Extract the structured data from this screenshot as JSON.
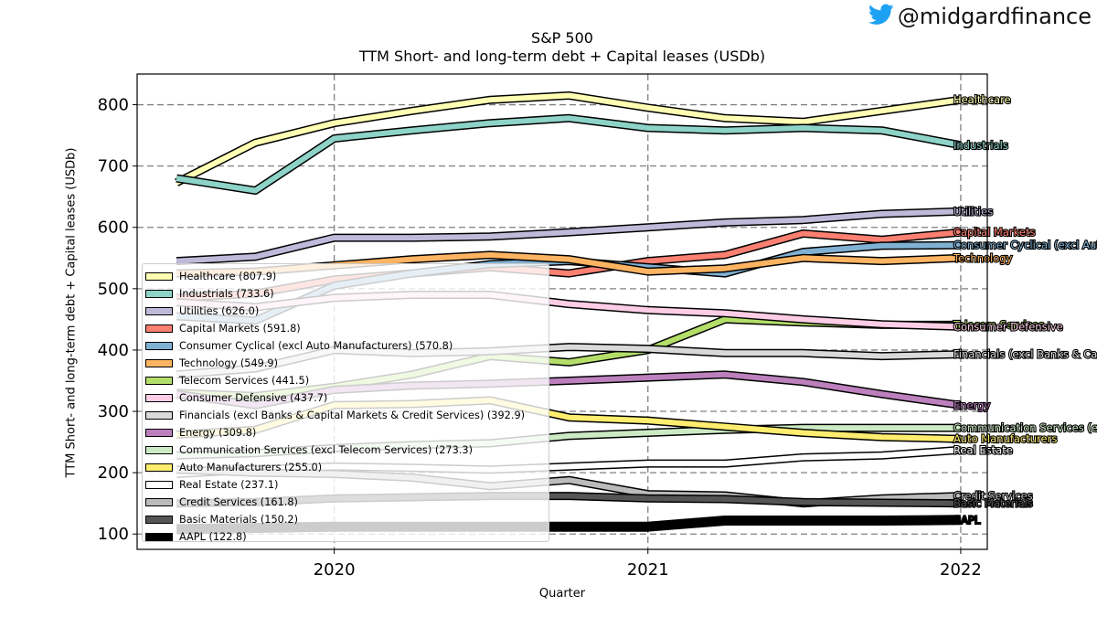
{
  "brand": {
    "handle": "@midgardfinance",
    "icon": "twitter-bird-icon",
    "icon_color": "#1DA1F2"
  },
  "chart_data": {
    "type": "line",
    "title": "S&P 500",
    "subtitle": "TTM Short- and long-term debt + Capital leases (USDb)",
    "xlabel": "Quarter",
    "ylabel": "TTM Short- and long-term debt + Capital leases (USDb)",
    "x": [
      "2019-06-30",
      "2019-09-30",
      "2019-12-31",
      "2020-03-31",
      "2020-06-30",
      "2020-09-30",
      "2020-12-31",
      "2021-03-31",
      "2021-06-30",
      "2021-09-30",
      "2021-12-31"
    ],
    "xlim": [
      "2019-05-15",
      "2022-01-31"
    ],
    "xticks": [
      {
        "label": "2020",
        "date": "2019-12-31"
      },
      {
        "label": "2021",
        "date": "2020-12-31"
      },
      {
        "label": "2022",
        "date": "2021-12-31"
      }
    ],
    "ylim": [
      75,
      850
    ],
    "yticks": [
      100,
      200,
      300,
      400,
      500,
      600,
      700,
      800
    ],
    "grid": true,
    "legend_position": "lower-left",
    "series": [
      {
        "name": "Healthcare",
        "legend": "Healthcare (807.9)",
        "label": "Healthcare",
        "color": "#ffffb3",
        "values": [
          673,
          738,
          770,
          790,
          808,
          815,
          795,
          778,
          772,
          790,
          808
        ]
      },
      {
        "name": "Industrials",
        "legend": "Industrials (733.6)",
        "label": "Industrials",
        "color": "#8dd3c7",
        "values": [
          680,
          660,
          745,
          758,
          770,
          778,
          762,
          758,
          762,
          758,
          734
        ]
      },
      {
        "name": "Utilities",
        "legend": "Utilities (626.0)",
        "label": "Utilities",
        "color": "#bebada",
        "values": [
          545,
          552,
          583,
          583,
          585,
          592,
          600,
          608,
          612,
          622,
          626
        ]
      },
      {
        "name": "Capital Markets",
        "legend": "Capital Markets (591.8)",
        "label": "Capital Markets",
        "color": "#fb8072",
        "values": [
          485,
          492,
          515,
          525,
          535,
          525,
          545,
          555,
          590,
          580,
          592
        ]
      },
      {
        "name": "Consumer Cyclical (excl Auto Manufacturers)",
        "legend": "Consumer Cyclical (excl Auto Manufacturers) (570.8)",
        "label": "Consumer Cyclical (excl Auto Manufacturers)",
        "color": "#80b1d3",
        "values": [
          455,
          448,
          505,
          525,
          540,
          545,
          535,
          525,
          560,
          570,
          571
        ]
      },
      {
        "name": "Technology",
        "legend": "Technology (549.9)",
        "label": "Technology",
        "color": "#fdb462",
        "values": [
          525,
          528,
          538,
          548,
          555,
          548,
          528,
          533,
          550,
          545,
          550
        ]
      },
      {
        "name": "Telecom Services",
        "legend": "Telecom Services (441.5)",
        "label": "Telecom Services",
        "color": "#b3de69",
        "values": [
          330,
          325,
          340,
          360,
          390,
          380,
          400,
          450,
          445,
          441,
          441
        ]
      },
      {
        "name": "Consumer Defensive",
        "legend": "Consumer Defensive (437.7)",
        "label": "Consumer Defensive",
        "color": "#fccde5",
        "values": [
          478,
          470,
          485,
          490,
          490,
          475,
          465,
          460,
          450,
          442,
          438
        ]
      },
      {
        "name": "Financials (excl Banks & Capital Markets & Credit Services)",
        "legend": "Financials (excl Banks & Capital Markets & Credit Services) (392.9)",
        "label": "Financials (excl Banks & Capital Markets & Credit Services)",
        "color": "#d9d9d9",
        "values": [
          360,
          370,
          400,
          395,
          398,
          405,
          402,
          395,
          395,
          390,
          393
        ]
      },
      {
        "name": "Energy",
        "legend": "Energy (309.8)",
        "label": "Energy",
        "color": "#bc80bd",
        "values": [
          328,
          310,
          335,
          342,
          345,
          350,
          355,
          360,
          348,
          328,
          310
        ]
      },
      {
        "name": "Communication Services (excl Telecom Services)",
        "legend": "Communication Services (excl Telecom Services) (273.3)",
        "label": "Communication Services (excl Telecom Services)",
        "color": "#ccebc5",
        "values": [
          228,
          232,
          240,
          245,
          248,
          260,
          265,
          270,
          273,
          273,
          273
        ]
      },
      {
        "name": "Auto Manufacturers",
        "legend": "Auto Manufacturers (255.0)",
        "label": "Auto Manufacturers",
        "color": "#ffed6f",
        "values": [
          262,
          270,
          310,
          312,
          318,
          290,
          285,
          275,
          265,
          258,
          255
        ]
      },
      {
        "name": "Real Estate",
        "legend": "Real Estate (237.1)",
        "label": "Real Estate",
        "color": "#ffffff",
        "values": [
          198,
          205,
          210,
          208,
          205,
          210,
          215,
          215,
          225,
          228,
          237
        ]
      },
      {
        "name": "Credit Services",
        "legend": "Credit Services (161.8)",
        "label": "Credit Services",
        "color": "#bbbbbb",
        "values": [
          205,
          200,
          198,
          192,
          178,
          188,
          165,
          163,
          150,
          158,
          162
        ]
      },
      {
        "name": "Basic Materials",
        "legend": "Basic Materials (150.2)",
        "label": "Basic Materials",
        "color": "#555555",
        "values": [
          150,
          152,
          158,
          160,
          162,
          162,
          158,
          157,
          152,
          151,
          150
        ]
      },
      {
        "name": "AAPL",
        "legend": "AAPL (122.8)",
        "label": "AAPL",
        "color": "#000000",
        "values": [
          108,
          110,
          112,
          112,
          112,
          112,
          112,
          122,
          122,
          122,
          123
        ]
      }
    ]
  }
}
